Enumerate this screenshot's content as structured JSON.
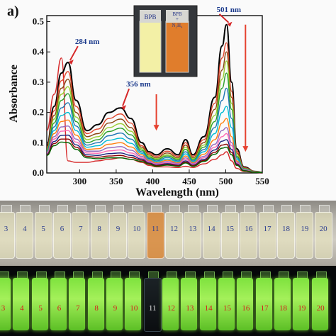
{
  "chart_data": {
    "type": "line",
    "panel_label": "a)",
    "xlabel": "Wavelength (nm)",
    "ylabel": "Absorbance",
    "xlim": [
      255,
      550
    ],
    "ylim": [
      0,
      0.52
    ],
    "xticks": [
      300,
      350,
      400,
      450,
      500,
      550
    ],
    "yticks": [
      0.0,
      0.1,
      0.2,
      0.3,
      0.4,
      0.5
    ],
    "x": [
      255,
      265,
      275,
      284,
      295,
      310,
      325,
      340,
      356,
      370,
      385,
      395,
      405,
      420,
      435,
      445,
      455,
      470,
      485,
      495,
      501,
      508,
      515,
      525,
      540,
      550
    ],
    "series": [
      {
        "color": "#d62728",
        "values": [
          0.14,
          0.26,
          0.38,
          0.04,
          0.035,
          0.035,
          0.04,
          0.045,
          0.05,
          0.045,
          0.035,
          0.025,
          0.02,
          0.02,
          0.018,
          0.022,
          0.018,
          0.03,
          0.045,
          0.06,
          0.07,
          0.04,
          0.015,
          0.005,
          0.002,
          0.0
        ]
      },
      {
        "color": "#000000",
        "values": [
          0.09,
          0.22,
          0.33,
          0.365,
          0.24,
          0.14,
          0.16,
          0.2,
          0.215,
          0.18,
          0.1,
          0.07,
          0.06,
          0.08,
          0.06,
          0.11,
          0.06,
          0.12,
          0.25,
          0.42,
          0.49,
          0.3,
          0.08,
          0.02,
          0.005,
          0.002
        ]
      },
      {
        "color": "#e0472e",
        "values": [
          0.085,
          0.205,
          0.305,
          0.335,
          0.22,
          0.13,
          0.145,
          0.18,
          0.195,
          0.165,
          0.09,
          0.065,
          0.055,
          0.072,
          0.055,
          0.1,
          0.055,
          0.11,
          0.23,
          0.38,
          0.43,
          0.27,
          0.072,
          0.018,
          0.005,
          0.002
        ]
      },
      {
        "color": "#8b4513",
        "values": [
          0.08,
          0.19,
          0.28,
          0.31,
          0.2,
          0.12,
          0.13,
          0.165,
          0.178,
          0.15,
          0.085,
          0.06,
          0.05,
          0.066,
          0.05,
          0.092,
          0.05,
          0.1,
          0.21,
          0.34,
          0.4,
          0.25,
          0.066,
          0.016,
          0.004,
          0.002
        ]
      },
      {
        "color": "#9acd32",
        "values": [
          0.078,
          0.178,
          0.26,
          0.285,
          0.185,
          0.11,
          0.12,
          0.15,
          0.163,
          0.138,
          0.08,
          0.056,
          0.047,
          0.06,
          0.047,
          0.085,
          0.047,
          0.092,
          0.19,
          0.31,
          0.37,
          0.23,
          0.06,
          0.015,
          0.004,
          0.002
        ]
      },
      {
        "color": "#2ca02c",
        "values": [
          0.075,
          0.165,
          0.24,
          0.262,
          0.17,
          0.1,
          0.11,
          0.137,
          0.148,
          0.126,
          0.075,
          0.052,
          0.044,
          0.056,
          0.044,
          0.078,
          0.044,
          0.085,
          0.17,
          0.28,
          0.33,
          0.21,
          0.055,
          0.014,
          0.004,
          0.002
        ]
      },
      {
        "color": "#1f77b4",
        "values": [
          0.072,
          0.152,
          0.215,
          0.232,
          0.155,
          0.092,
          0.1,
          0.123,
          0.132,
          0.112,
          0.07,
          0.048,
          0.04,
          0.051,
          0.04,
          0.07,
          0.04,
          0.077,
          0.15,
          0.24,
          0.28,
          0.18,
          0.05,
          0.013,
          0.003,
          0.001
        ]
      },
      {
        "color": "#00bcd4",
        "values": [
          0.07,
          0.14,
          0.19,
          0.2,
          0.14,
          0.085,
          0.09,
          0.108,
          0.115,
          0.098,
          0.065,
          0.045,
          0.037,
          0.046,
          0.037,
          0.063,
          0.037,
          0.07,
          0.13,
          0.2,
          0.22,
          0.15,
          0.045,
          0.012,
          0.003,
          0.001
        ]
      },
      {
        "color": "#ff7f0e",
        "values": [
          0.068,
          0.13,
          0.17,
          0.175,
          0.125,
          0.078,
          0.08,
          0.095,
          0.1,
          0.086,
          0.06,
          0.042,
          0.034,
          0.042,
          0.034,
          0.056,
          0.034,
          0.062,
          0.11,
          0.165,
          0.18,
          0.12,
          0.04,
          0.011,
          0.003,
          0.001
        ]
      },
      {
        "color": "#9467bd",
        "values": [
          0.066,
          0.12,
          0.152,
          0.155,
          0.112,
          0.072,
          0.072,
          0.083,
          0.087,
          0.075,
          0.055,
          0.039,
          0.031,
          0.038,
          0.031,
          0.05,
          0.031,
          0.055,
          0.095,
          0.14,
          0.15,
          0.1,
          0.036,
          0.01,
          0.003,
          0.001
        ]
      },
      {
        "color": "#ff69b4",
        "values": [
          0.064,
          0.112,
          0.138,
          0.14,
          0.102,
          0.066,
          0.065,
          0.073,
          0.076,
          0.066,
          0.05,
          0.036,
          0.029,
          0.034,
          0.029,
          0.045,
          0.029,
          0.05,
          0.085,
          0.12,
          0.13,
          0.09,
          0.033,
          0.009,
          0.002,
          0.001
        ]
      },
      {
        "color": "#1a237e",
        "values": [
          0.062,
          0.104,
          0.124,
          0.125,
          0.093,
          0.06,
          0.058,
          0.064,
          0.066,
          0.058,
          0.046,
          0.033,
          0.026,
          0.031,
          0.026,
          0.04,
          0.026,
          0.045,
          0.076,
          0.105,
          0.11,
          0.078,
          0.03,
          0.008,
          0.002,
          0.001
        ]
      },
      {
        "color": "#8b0000",
        "values": [
          0.06,
          0.097,
          0.112,
          0.112,
          0.085,
          0.055,
          0.052,
          0.056,
          0.058,
          0.051,
          0.042,
          0.031,
          0.024,
          0.028,
          0.024,
          0.036,
          0.024,
          0.041,
          0.068,
          0.092,
          0.095,
          0.068,
          0.027,
          0.007,
          0.002,
          0.001
        ]
      },
      {
        "color": "#006400",
        "values": [
          0.058,
          0.09,
          0.102,
          0.1,
          0.078,
          0.05,
          0.047,
          0.05,
          0.05,
          0.045,
          0.038,
          0.029,
          0.022,
          0.026,
          0.022,
          0.033,
          0.022,
          0.038,
          0.062,
          0.082,
          0.085,
          0.06,
          0.025,
          0.007,
          0.002,
          0.001
        ]
      }
    ],
    "annotations": [
      {
        "text": "284 nm",
        "x": 284,
        "y": 0.365
      },
      {
        "text": "356 nm",
        "x": 356,
        "y": 0.215
      },
      {
        "text": "501 nm",
        "x": 501,
        "y": 0.49
      }
    ],
    "arrows": [
      {
        "direction": "down",
        "x": 405
      },
      {
        "direction": "down",
        "x": 527
      }
    ],
    "inset": {
      "left_label": "BPB",
      "right_label_top": "BPB",
      "right_label_plus": "+",
      "right_label_bottom": "N₂H₄",
      "left_color": "#f3f0a6",
      "right_color": "#e07d2c"
    }
  },
  "photos": {
    "daylight_vials": [
      "3",
      "4",
      "5",
      "6",
      "7",
      "8",
      "9",
      "10",
      "11",
      "12",
      "13",
      "14",
      "15",
      "16",
      "17",
      "18",
      "19",
      "20"
    ],
    "uv_vials": [
      "3",
      "4",
      "5",
      "6",
      "7",
      "8",
      "9",
      "10",
      "11",
      "12",
      "13",
      "14",
      "15",
      "16",
      "17",
      "18",
      "19",
      "20"
    ],
    "highlighted_vial": "11"
  }
}
